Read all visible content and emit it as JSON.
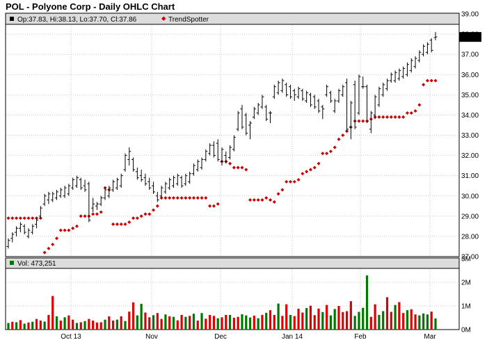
{
  "title": "POL - Polyone Corp - Daily OHLC Chart",
  "colors": {
    "price_bar": "#000000",
    "trendspotter": "#cc0000",
    "volume_up": "#007700",
    "volume_down": "#dd0000",
    "grid": "#c8c8c8",
    "panel_header": "#dcdcdc",
    "last_price_box": "#000000"
  },
  "price_panel": {
    "legend": [
      {
        "marker": "black-square",
        "text": "Op:37.83, Hi:38.13, Lo:37.70, Cl:37.86"
      },
      {
        "marker": "red-diamond",
        "text": "TrendSpotter"
      }
    ],
    "last_price_label": "37.86",
    "y_ticks": [
      "39.00",
      "38.00",
      "37.00",
      "36.00",
      "35.00",
      "34.00",
      "33.00",
      "32.00",
      "31.00",
      "30.00",
      "29.00",
      "28.00",
      "27.00"
    ]
  },
  "volume_panel": {
    "legend": "Vol: 473,251",
    "y_ticks": [
      "3M",
      "2M",
      "1M",
      "0M"
    ]
  },
  "x_ticks": [
    "Oct 13",
    "Nov",
    "Dec",
    "Jan 14",
    "Feb",
    "Mar"
  ],
  "chart_data": [
    {
      "type": "ohlc",
      "title": "POL - Polyone Corp - Daily OHLC Chart",
      "ylim": [
        27,
        39
      ],
      "grid": true,
      "legend_position": "top-left",
      "last_bar": {
        "open": 37.83,
        "high": 38.13,
        "low": 37.7,
        "close": 37.86
      },
      "series": [
        {
          "name": "Price",
          "highs": [
            27.9,
            28.2,
            28.5,
            28.7,
            28.6,
            28.4,
            28.6,
            28.9,
            29.5,
            30.1,
            30.2,
            30.2,
            30.3,
            30.4,
            30.5,
            30.6,
            30.9,
            31.0,
            30.9,
            30.8,
            30.7,
            29.9,
            29.7,
            30.0,
            30.4,
            30.5,
            30.8,
            30.9,
            31.1,
            32.1,
            32.4,
            31.9,
            31.4,
            31.3,
            31.1,
            30.9,
            30.7,
            30.2,
            30.5,
            30.7,
            30.9,
            31.0,
            31.1,
            31.0,
            31.1,
            31.2,
            31.6,
            31.8,
            31.9,
            32.3,
            32.6,
            32.7,
            32.8,
            32.4,
            32.2,
            32.5,
            33.0,
            34.2,
            34.5,
            34.1,
            33.7,
            34.4,
            34.6,
            35.0,
            34.5,
            34.2,
            35.5,
            35.7,
            35.8,
            35.6,
            35.5,
            35.3,
            35.4,
            35.3,
            35.2,
            35.1,
            35.0,
            34.8,
            34.5,
            35.5,
            35.2,
            34.8,
            35.3,
            35.5,
            35.8,
            34.7,
            35.7,
            36.0,
            35.9,
            35.5,
            34.2,
            35.0,
            35.4,
            35.6,
            35.8,
            36.1,
            36.2,
            36.3,
            36.4,
            36.6,
            36.8,
            36.9,
            37.2,
            37.5,
            37.6,
            37.8,
            38.1
          ],
          "lows": [
            27.4,
            27.7,
            28.0,
            28.2,
            28.1,
            27.9,
            28.1,
            28.4,
            28.9,
            29.5,
            29.6,
            29.7,
            29.8,
            29.9,
            29.9,
            30.0,
            30.3,
            30.4,
            30.3,
            30.2,
            28.7,
            29.2,
            29.3,
            29.5,
            29.8,
            29.9,
            30.2,
            30.3,
            30.4,
            31.2,
            31.5,
            31.2,
            30.8,
            30.7,
            30.5,
            30.3,
            30.1,
            29.7,
            29.9,
            30.1,
            30.3,
            30.4,
            30.5,
            30.4,
            30.5,
            30.6,
            31.0,
            31.2,
            31.3,
            31.7,
            32.0,
            31.9,
            31.7,
            31.5,
            31.6,
            31.8,
            32.2,
            33.2,
            33.3,
            33.0,
            32.8,
            33.8,
            34.0,
            34.3,
            33.7,
            33.6,
            34.8,
            35.0,
            35.1,
            34.9,
            34.8,
            34.7,
            34.8,
            34.7,
            34.6,
            34.4,
            34.3,
            34.1,
            33.8,
            34.9,
            34.6,
            34.1,
            34.6,
            34.9,
            33.2,
            32.8,
            33.3,
            34.0,
            35.3,
            33.6,
            33.1,
            33.8,
            34.4,
            34.9,
            35.2,
            35.6,
            35.6,
            35.7,
            35.8,
            35.9,
            36.1,
            36.3,
            36.6,
            36.9,
            37.0,
            37.1,
            37.7
          ],
          "opens": [
            27.5,
            27.9,
            28.2,
            28.4,
            28.5,
            28.0,
            28.2,
            28.6,
            29.0,
            29.6,
            29.8,
            29.8,
            29.9,
            30.0,
            30.0,
            30.1,
            30.4,
            30.5,
            30.8,
            30.5,
            30.6,
            29.4,
            29.5,
            29.6,
            29.9,
            30.0,
            30.3,
            30.4,
            30.5,
            31.3,
            31.8,
            31.8,
            31.2,
            31.0,
            30.9,
            30.7,
            30.5,
            30.0,
            30.0,
            30.2,
            30.4,
            30.5,
            30.6,
            30.9,
            30.6,
            30.7,
            31.1,
            31.3,
            31.4,
            31.8,
            32.1,
            32.5,
            32.6,
            31.7,
            32.0,
            31.9,
            32.3,
            33.3,
            34.3,
            34.0,
            33.5,
            33.9,
            34.1,
            34.4,
            34.4,
            34.1,
            34.9,
            35.1,
            35.2,
            35.5,
            35.4,
            35.2,
            34.9,
            35.2,
            34.7,
            35.0,
            34.9,
            34.7,
            34.4,
            35.0,
            35.1,
            34.2,
            34.7,
            35.0,
            35.6,
            33.4,
            35.5,
            34.1,
            35.4,
            35.4,
            33.3,
            34.0,
            34.5,
            35.0,
            35.3,
            35.7,
            35.7,
            35.8,
            35.9,
            36.0,
            36.2,
            36.4,
            36.7,
            37.0,
            37.1,
            37.7,
            37.83
          ],
          "closes": [
            27.8,
            28.1,
            28.4,
            28.6,
            28.2,
            28.3,
            28.5,
            28.8,
            29.4,
            30.0,
            30.1,
            30.1,
            30.2,
            30.3,
            30.4,
            30.5,
            30.8,
            30.9,
            30.4,
            30.3,
            28.8,
            29.6,
            29.6,
            29.9,
            30.3,
            30.4,
            30.7,
            30.8,
            31.0,
            32.0,
            32.2,
            31.3,
            30.9,
            30.8,
            30.6,
            30.4,
            30.2,
            29.8,
            30.4,
            30.6,
            30.8,
            30.9,
            31.0,
            30.5,
            31.0,
            31.1,
            31.5,
            31.7,
            31.8,
            32.2,
            32.5,
            32.0,
            31.8,
            32.3,
            31.7,
            32.4,
            32.9,
            34.1,
            33.4,
            33.1,
            33.6,
            34.3,
            34.5,
            34.9,
            33.8,
            34.1,
            35.4,
            35.6,
            35.7,
            35.0,
            34.9,
            35.0,
            35.3,
            34.8,
            35.1,
            34.5,
            34.4,
            34.2,
            34.3,
            35.4,
            34.7,
            34.7,
            35.2,
            35.4,
            33.3,
            34.6,
            33.4,
            35.9,
            35.4,
            33.7,
            34.1,
            34.9,
            35.3,
            35.5,
            35.7,
            36.0,
            36.1,
            36.2,
            36.3,
            36.5,
            36.7,
            36.8,
            37.1,
            37.4,
            37.5,
            37.2,
            37.86
          ]
        },
        {
          "name": "TrendSpotter",
          "values": [
            28.9,
            28.9,
            28.9,
            28.9,
            28.9,
            28.9,
            28.9,
            28.9,
            28.9,
            27.2,
            27.4,
            27.6,
            27.9,
            28.3,
            28.3,
            28.3,
            28.4,
            28.5,
            29.0,
            29.0,
            29.0,
            29.1,
            29.1,
            29.2,
            30.4,
            30.3,
            28.6,
            28.6,
            28.6,
            28.6,
            28.7,
            28.9,
            28.9,
            29.0,
            29.1,
            29.1,
            29.3,
            29.5,
            29.9,
            29.9,
            29.9,
            29.9,
            29.9,
            29.9,
            29.9,
            29.9,
            29.9,
            29.9,
            29.9,
            29.9,
            29.5,
            29.5,
            29.6,
            31.7,
            31.7,
            31.6,
            31.4,
            31.4,
            31.4,
            31.3,
            29.8,
            29.8,
            29.8,
            29.8,
            29.9,
            29.8,
            29.7,
            30.1,
            30.3,
            30.7,
            30.7,
            30.7,
            30.8,
            31.1,
            31.2,
            31.3,
            31.4,
            31.6,
            32.1,
            32.1,
            32.2,
            32.4,
            32.8,
            33.0,
            33.2,
            33.4,
            33.7,
            33.7,
            33.7,
            33.7,
            33.8,
            33.9,
            33.9,
            33.9,
            33.9,
            33.9,
            33.9,
            33.9,
            33.9,
            34.1,
            34.1,
            34.2,
            34.5,
            35.5,
            35.7,
            35.7,
            35.7
          ]
        }
      ]
    },
    {
      "type": "bar",
      "title": "",
      "ylim": [
        0,
        3000000
      ],
      "legend_position": "top-left",
      "series": [
        {
          "name": "Vol",
          "values": [
            280000,
            330000,
            310000,
            400000,
            250000,
            300000,
            330000,
            450000,
            380000,
            340000,
            620000,
            1420000,
            560000,
            380000,
            520000,
            600000,
            420000,
            280000,
            310000,
            360000,
            450000,
            380000,
            300000,
            310000,
            420000,
            560000,
            380000,
            420000,
            560000,
            360000,
            760000,
            1150000,
            600000,
            1090000,
            720000,
            520000,
            610000,
            700000,
            450000,
            640000,
            560000,
            540000,
            390000,
            620000,
            540000,
            580000,
            670000,
            380000,
            700000,
            460000,
            620000,
            580000,
            480000,
            520000,
            620000,
            620000,
            500000,
            540000,
            650000,
            600000,
            510000,
            590000,
            480000,
            620000,
            710000,
            820000,
            620000,
            1100000,
            580000,
            1070000,
            620000,
            570000,
            880000,
            720000,
            910000,
            1010000,
            610000,
            890000,
            740000,
            1040000,
            600000,
            870000,
            1000000,
            740000,
            780000,
            1200000,
            580000,
            750000,
            920000,
            2290000,
            540000,
            1070000,
            620000,
            780000,
            1370000,
            750000,
            1040000,
            1160000,
            700000,
            820000,
            860000,
            640000,
            600000,
            680000,
            640000,
            760000,
            470000
          ],
          "up_flags": [
            true,
            false,
            true,
            false,
            true,
            false,
            true,
            false,
            false,
            true,
            false,
            false,
            true,
            false,
            true,
            false,
            false,
            true,
            false,
            true,
            false,
            false,
            false,
            false,
            true,
            false,
            false,
            true,
            false,
            true,
            false,
            false,
            true,
            true,
            false,
            false,
            true,
            false,
            false,
            true,
            false,
            true,
            false,
            false,
            true,
            false,
            true,
            false,
            true,
            false,
            false,
            false,
            true,
            false,
            false,
            true,
            false,
            false,
            true,
            true,
            true,
            false,
            true,
            false,
            true,
            false,
            false,
            true,
            false,
            false,
            true,
            false,
            false,
            false,
            true,
            false,
            false,
            false,
            true,
            false,
            true,
            true,
            false,
            false,
            false,
            false,
            true,
            true,
            true,
            true,
            false,
            false,
            true,
            true,
            false,
            false,
            true,
            false,
            false,
            true,
            false,
            false,
            true,
            true,
            true,
            false,
            true
          ]
        }
      ]
    }
  ]
}
